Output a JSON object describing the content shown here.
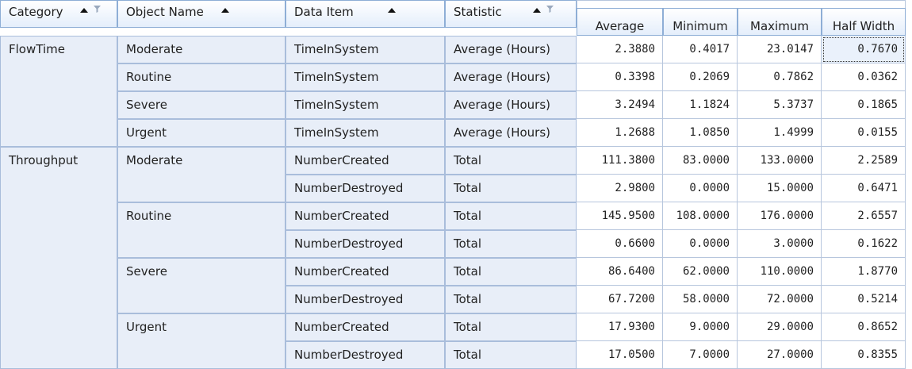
{
  "row_headers": [
    {
      "label": "Category",
      "sorted": "asc",
      "filter": true
    },
    {
      "label": "Object Name",
      "sorted": "asc",
      "filter": false
    },
    {
      "label": "Data Item",
      "sorted": "asc",
      "filter": false
    },
    {
      "label": "Statistic",
      "sorted": "asc",
      "filter": true
    }
  ],
  "value_headers": [
    "Average",
    "Minimum",
    "Maximum",
    "Half Width"
  ],
  "categories": [
    {
      "name": "FlowTime",
      "objects": [
        {
          "name": "Moderate",
          "rows": [
            {
              "item": "TimeInSystem",
              "stat": "Average (Hours)",
              "values": [
                "2.3880",
                "0.4017",
                "23.0147",
                "0.7670"
              ]
            }
          ]
        },
        {
          "name": "Routine",
          "rows": [
            {
              "item": "TimeInSystem",
              "stat": "Average (Hours)",
              "values": [
                "0.3398",
                "0.2069",
                "0.7862",
                "0.0362"
              ]
            }
          ]
        },
        {
          "name": "Severe",
          "rows": [
            {
              "item": "TimeInSystem",
              "stat": "Average (Hours)",
              "values": [
                "3.2494",
                "1.1824",
                "5.3737",
                "0.1865"
              ]
            }
          ]
        },
        {
          "name": "Urgent",
          "rows": [
            {
              "item": "TimeInSystem",
              "stat": "Average (Hours)",
              "values": [
                "1.2688",
                "1.0850",
                "1.4999",
                "0.0155"
              ]
            }
          ]
        }
      ]
    },
    {
      "name": "Throughput",
      "objects": [
        {
          "name": "Moderate",
          "rows": [
            {
              "item": "NumberCreated",
              "stat": "Total",
              "values": [
                "111.3800",
                "83.0000",
                "133.0000",
                "2.2589"
              ]
            },
            {
              "item": "NumberDestroyed",
              "stat": "Total",
              "values": [
                "2.9800",
                "0.0000",
                "15.0000",
                "0.6471"
              ]
            }
          ]
        },
        {
          "name": "Routine",
          "rows": [
            {
              "item": "NumberCreated",
              "stat": "Total",
              "values": [
                "145.9500",
                "108.0000",
                "176.0000",
                "2.6557"
              ]
            },
            {
              "item": "NumberDestroyed",
              "stat": "Total",
              "values": [
                "0.6600",
                "0.0000",
                "3.0000",
                "0.1622"
              ]
            }
          ]
        },
        {
          "name": "Severe",
          "rows": [
            {
              "item": "NumberCreated",
              "stat": "Total",
              "values": [
                "86.6400",
                "62.0000",
                "110.0000",
                "1.8770"
              ]
            },
            {
              "item": "NumberDestroyed",
              "stat": "Total",
              "values": [
                "67.7200",
                "58.0000",
                "72.0000",
                "0.5214"
              ]
            }
          ]
        },
        {
          "name": "Urgent",
          "rows": [
            {
              "item": "NumberCreated",
              "stat": "Total",
              "values": [
                "17.9300",
                "9.0000",
                "29.0000",
                "0.8652"
              ]
            },
            {
              "item": "NumberDestroyed",
              "stat": "Total",
              "values": [
                "17.0500",
                "7.0000",
                "27.0000",
                "0.8355"
              ]
            }
          ]
        }
      ]
    }
  ],
  "selected_cell": {
    "row": 0,
    "col": 3
  },
  "colors": {
    "header_border": "#8eaed6",
    "row_header_bg": "#e8eef8",
    "grid_line": "#b7c6dd"
  }
}
